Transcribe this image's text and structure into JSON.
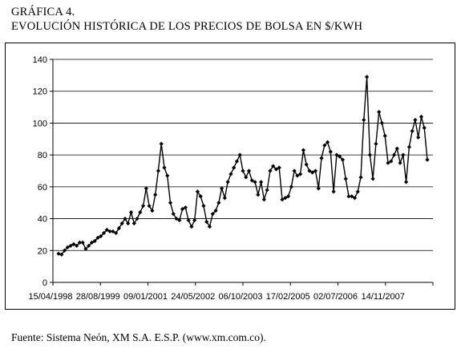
{
  "header": {
    "label": "GRÁFICA 4.",
    "title": "EVOLUCIÓN HISTÓRICA DE LOS PRECIOS DE BOLSA EN $/KWH"
  },
  "footer": {
    "source": "Fuente: Sistema Neón, XM S.A. E.S.P. (www.xm.com.co)."
  },
  "chart_data": {
    "type": "line",
    "title": "",
    "xlabel": "",
    "ylabel": "",
    "ylim": [
      0,
      140
    ],
    "yticks": [
      0,
      20,
      40,
      60,
      80,
      100,
      120,
      140
    ],
    "x_tick_labels": [
      "15/04/1998",
      "28/08/1999",
      "09/01/2001",
      "24/05/2002",
      "06/10/2003",
      "17/02/2005",
      "02/07/2006",
      "14/11/2007"
    ],
    "grid": "horizontal",
    "legend": "none",
    "line_color": "#000000",
    "marker": "diamond",
    "series": [
      {
        "values": [
          18,
          17.5,
          20,
          22,
          23,
          24,
          23,
          25,
          25,
          21,
          23,
          25,
          26,
          28,
          29,
          31,
          33,
          32,
          32,
          31,
          34,
          37,
          40,
          37,
          44,
          37,
          40,
          44,
          48,
          59,
          48,
          45,
          55,
          70,
          87,
          72,
          67,
          50,
          43,
          40,
          39,
          46,
          47,
          39,
          35,
          39,
          57,
          54,
          48,
          38,
          35,
          43,
          45,
          50,
          59,
          53,
          63,
          68,
          72,
          76,
          80,
          70,
          66,
          70,
          64,
          63,
          55,
          63,
          52,
          58,
          70,
          73,
          71,
          72,
          52,
          53,
          54,
          60,
          70,
          67,
          68,
          83,
          74,
          70,
          69,
          70,
          59,
          78,
          86,
          88,
          82,
          57,
          80,
          79,
          77,
          65,
          54,
          54,
          53,
          57,
          66,
          102,
          129,
          80,
          65,
          87,
          107,
          100,
          92,
          75,
          76,
          80,
          84,
          75,
          80,
          63,
          85,
          95,
          102,
          91,
          104,
          97,
          77
        ]
      }
    ]
  }
}
